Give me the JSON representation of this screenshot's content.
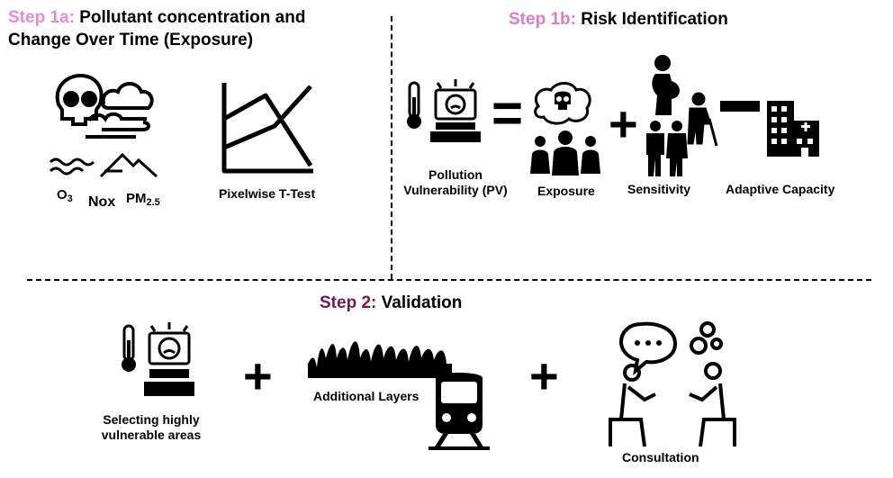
{
  "step1a": {
    "tag": "Step 1a:",
    "title_line1": "Pollutant concentration and",
    "title_line2": "Change Over Time (Exposure)",
    "pollutants": {
      "o3_main": "O",
      "o3_sub": "3",
      "nox": "Nox",
      "pm_main": "PM",
      "pm_sub": "2.5"
    },
    "ttest_label": "Pixelwise T-Test"
  },
  "step1b": {
    "tag": "Step 1b:",
    "title": "Risk Identification",
    "pv_line1": "Pollution",
    "pv_line2": "Vulnerability (PV)",
    "equals": "=",
    "exposure": "Exposure",
    "plus": "+",
    "sensitivity": "Sensitivity",
    "minus": "−",
    "adaptive": "Adaptive Capacity"
  },
  "step2": {
    "tag": "Step 2:",
    "title": "Validation",
    "select_line1": "Selecting highly",
    "select_line2": "vulnerable areas",
    "plus1": "+",
    "additional_layers": "Additional Layers",
    "plus2": "+",
    "consultation": "Consultation"
  },
  "colors": {
    "step1a": "#e78bd2",
    "step1b": "#e07acb",
    "step2": "#6a1b58"
  },
  "icons": [
    "skull-smog-icon",
    "waves-mountain-icon",
    "line-chart-icon",
    "thermometer-icon",
    "sick-computer-icon",
    "skull-thought-icon",
    "group-people-icon",
    "pregnant-woman-icon",
    "elderly-person-icon",
    "children-icon",
    "hospital-icon",
    "grass-icon",
    "train-icon",
    "conversation-icon"
  ]
}
